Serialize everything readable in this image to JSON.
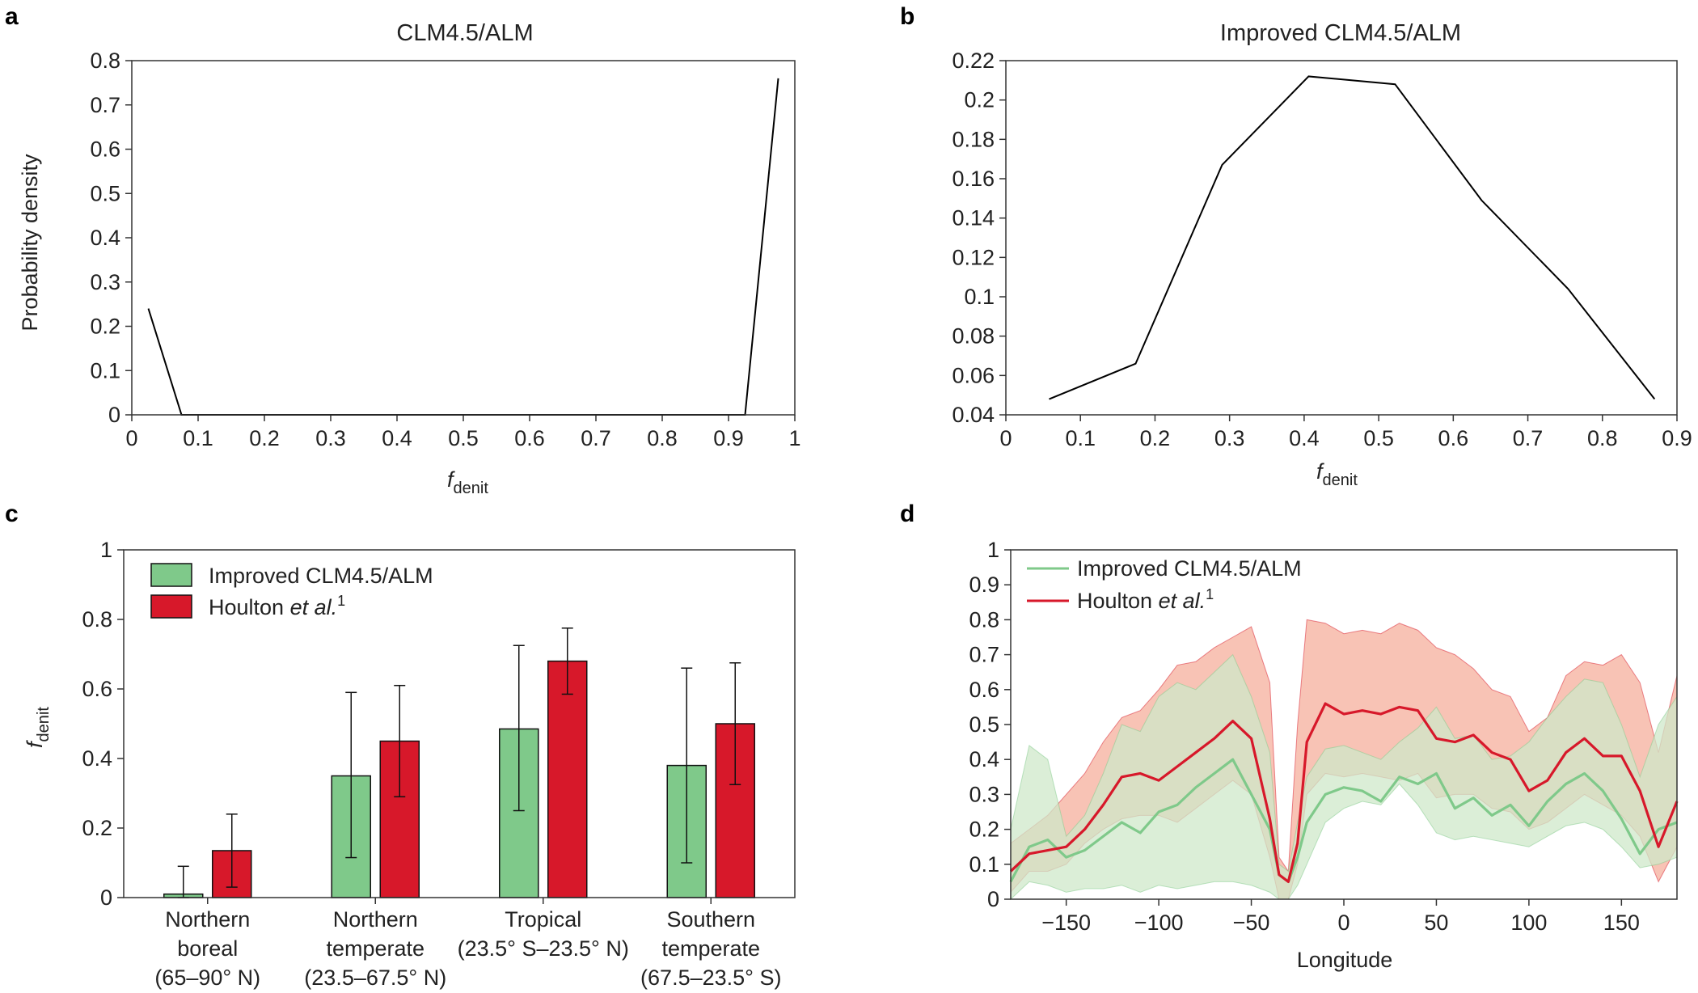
{
  "figure": {
    "panel_labels": [
      "a",
      "b",
      "c",
      "d"
    ]
  },
  "colors": {
    "green": "#7fc98a",
    "red": "#d7182a",
    "green_band": "#cfe8c9",
    "red_band": "#f7b9a8",
    "axis": "#333333"
  },
  "chart_data": [
    {
      "panel": "a",
      "type": "line",
      "title": "CLM4.5/ALM",
      "xlabel_main": "f",
      "xlabel_sub": "denit",
      "ylabel": "Probability density",
      "xlim": [
        0,
        1
      ],
      "ylim": [
        0,
        0.8
      ],
      "xticks": [
        0,
        0.1,
        0.2,
        0.3,
        0.4,
        0.5,
        0.6,
        0.7,
        0.8,
        0.9,
        1
      ],
      "xtick_labels": [
        "0",
        "0.1",
        "0.2",
        "0.3",
        "0.4",
        "0.5",
        "0.6",
        "0.7",
        "0.8",
        "0.9",
        "1"
      ],
      "yticks": [
        0,
        0.1,
        0.2,
        0.3,
        0.4,
        0.5,
        0.6,
        0.7,
        0.8
      ],
      "ytick_labels": [
        "0",
        "0.1",
        "0.2",
        "0.3",
        "0.4",
        "0.5",
        "0.6",
        "0.7",
        "0.8"
      ],
      "x": [
        0.025,
        0.075,
        0.925,
        0.975
      ],
      "y": [
        0.24,
        0,
        0,
        0.76
      ]
    },
    {
      "panel": "b",
      "type": "line",
      "title": "Improved CLM4.5/ALM",
      "xlabel_main": "f",
      "xlabel_sub": "denit",
      "ylabel": "",
      "xlim": [
        0,
        0.9
      ],
      "ylim": [
        0.04,
        0.22
      ],
      "xticks": [
        0,
        0.1,
        0.2,
        0.3,
        0.4,
        0.5,
        0.6,
        0.7,
        0.8,
        0.9
      ],
      "xtick_labels": [
        "0",
        "0.1",
        "0.2",
        "0.3",
        "0.4",
        "0.5",
        "0.6",
        "0.7",
        "0.8",
        "0.9"
      ],
      "yticks": [
        0.04,
        0.06,
        0.08,
        0.1,
        0.12,
        0.14,
        0.16,
        0.18,
        0.2,
        0.22
      ],
      "ytick_labels": [
        "0.04",
        "0.06",
        "0.08",
        "0.1",
        "0.12",
        "0.14",
        "0.16",
        "0.18",
        "0.2",
        "0.22"
      ],
      "x": [
        0.058,
        0.174,
        0.29,
        0.406,
        0.522,
        0.638,
        0.754,
        0.87
      ],
      "y": [
        0.048,
        0.066,
        0.167,
        0.212,
        0.208,
        0.149,
        0.104,
        0.048
      ]
    },
    {
      "panel": "c",
      "type": "bar",
      "title": "",
      "ylabel_main": "f",
      "ylabel_sub": "denit",
      "ylim": [
        0,
        1
      ],
      "yticks": [
        0,
        0.2,
        0.4,
        0.6,
        0.8,
        1
      ],
      "ytick_labels": [
        "0",
        "0.2",
        "0.4",
        "0.6",
        "0.8",
        "1"
      ],
      "categories": [
        [
          "Northern",
          "boreal",
          "(65–90° N)"
        ],
        [
          "Northern",
          "temperate",
          "(23.5–67.5° N)"
        ],
        [
          "Tropical",
          "(23.5° S–23.5° N)"
        ],
        [
          "Southern",
          "temperate",
          "(67.5–23.5° S)"
        ]
      ],
      "series": [
        {
          "name": "Improved CLM4.5/ALM",
          "values": [
            0.01,
            0.35,
            0.485,
            0.38
          ],
          "err_low": [
            0,
            0.115,
            0.25,
            0.1
          ],
          "err_high": [
            0.09,
            0.59,
            0.725,
            0.66
          ]
        },
        {
          "name": "Houlton et al.",
          "values": [
            0.135,
            0.45,
            0.68,
            0.5
          ],
          "err_low": [
            0.03,
            0.29,
            0.585,
            0.325
          ],
          "err_high": [
            0.24,
            0.61,
            0.775,
            0.675
          ]
        }
      ],
      "legend": [
        {
          "label": "Improved CLM4.5/ALM",
          "italic": "",
          "sup": ""
        },
        {
          "label": "Houlton ",
          "italic": "et al.",
          "sup": "1"
        }
      ]
    },
    {
      "panel": "d",
      "type": "line",
      "title": "",
      "xlabel": "Longitude",
      "xlim": [
        -180,
        180
      ],
      "ylim": [
        0,
        1
      ],
      "xticks": [
        -150,
        -100,
        -50,
        0,
        50,
        100,
        150
      ],
      "xtick_labels": [
        "−150",
        "−100",
        "−50",
        "0",
        "50",
        "100",
        "150"
      ],
      "yticks": [
        0,
        0.1,
        0.2,
        0.3,
        0.4,
        0.5,
        0.6,
        0.7,
        0.8,
        0.9,
        1
      ],
      "ytick_labels": [
        "0",
        "0.1",
        "0.2",
        "0.3",
        "0.4",
        "0.5",
        "0.6",
        "0.7",
        "0.8",
        "0.9",
        "1"
      ],
      "legend": [
        {
          "label": "Improved CLM4.5/ALM",
          "italic": "",
          "sup": ""
        },
        {
          "label": "Houlton ",
          "italic": "et al.",
          "sup": "1"
        }
      ],
      "series": [
        {
          "name": "Improved CLM4.5/ALM",
          "x": [
            -180,
            -170,
            -160,
            -150,
            -140,
            -130,
            -120,
            -110,
            -100,
            -90,
            -80,
            -70,
            -60,
            -50,
            -40,
            -35,
            -30,
            -25,
            -20,
            -10,
            0,
            10,
            20,
            30,
            40,
            50,
            60,
            70,
            80,
            90,
            100,
            110,
            120,
            130,
            140,
            150,
            160,
            170,
            180
          ],
          "y": [
            0.05,
            0.15,
            0.17,
            0.12,
            0.14,
            0.18,
            0.22,
            0.19,
            0.25,
            0.27,
            0.32,
            0.36,
            0.4,
            0.3,
            0.2,
            0.07,
            0.05,
            0.12,
            0.22,
            0.3,
            0.32,
            0.31,
            0.28,
            0.35,
            0.33,
            0.36,
            0.26,
            0.29,
            0.24,
            0.27,
            0.21,
            0.28,
            0.33,
            0.36,
            0.31,
            0.23,
            0.13,
            0.2,
            0.22
          ],
          "band_low": [
            0.0,
            0.05,
            0.04,
            0.02,
            0.03,
            0.03,
            0.04,
            0.02,
            0.04,
            0.03,
            0.04,
            0.05,
            0.05,
            0.04,
            0.02,
            0.0,
            0.0,
            0.04,
            0.1,
            0.22,
            0.26,
            0.28,
            0.27,
            0.33,
            0.27,
            0.19,
            0.17,
            0.18,
            0.17,
            0.16,
            0.15,
            0.18,
            0.21,
            0.22,
            0.2,
            0.15,
            0.09,
            0.1,
            0.12
          ],
          "band_high": [
            0.2,
            0.44,
            0.4,
            0.18,
            0.24,
            0.36,
            0.5,
            0.48,
            0.58,
            0.62,
            0.6,
            0.65,
            0.7,
            0.58,
            0.42,
            0.1,
            0.08,
            0.22,
            0.35,
            0.43,
            0.44,
            0.42,
            0.4,
            0.45,
            0.49,
            0.55,
            0.46,
            0.47,
            0.4,
            0.41,
            0.45,
            0.52,
            0.58,
            0.63,
            0.62,
            0.5,
            0.35,
            0.5,
            0.58
          ]
        },
        {
          "name": "Houlton et al.",
          "x": [
            -180,
            -170,
            -160,
            -150,
            -140,
            -130,
            -120,
            -110,
            -100,
            -90,
            -80,
            -70,
            -60,
            -50,
            -40,
            -35,
            -30,
            -25,
            -20,
            -10,
            0,
            10,
            20,
            30,
            40,
            50,
            60,
            70,
            80,
            90,
            100,
            110,
            120,
            130,
            140,
            150,
            160,
            170,
            180
          ],
          "y": [
            0.08,
            0.13,
            0.14,
            0.15,
            0.2,
            0.27,
            0.35,
            0.36,
            0.34,
            0.38,
            0.42,
            0.46,
            0.51,
            0.46,
            0.23,
            0.07,
            0.05,
            0.16,
            0.45,
            0.56,
            0.53,
            0.54,
            0.53,
            0.55,
            0.54,
            0.46,
            0.45,
            0.47,
            0.42,
            0.4,
            0.31,
            0.34,
            0.42,
            0.46,
            0.41,
            0.41,
            0.31,
            0.15,
            0.28
          ],
          "band_low": [
            0.02,
            0.08,
            0.08,
            0.1,
            0.16,
            0.2,
            0.23,
            0.24,
            0.24,
            0.22,
            0.26,
            0.3,
            0.34,
            0.3,
            0.12,
            0.0,
            0.0,
            0.1,
            0.3,
            0.36,
            0.35,
            0.36,
            0.35,
            0.34,
            0.36,
            0.29,
            0.3,
            0.3,
            0.26,
            0.25,
            0.2,
            0.22,
            0.26,
            0.3,
            0.27,
            0.24,
            0.18,
            0.05,
            0.15
          ],
          "band_high": [
            0.16,
            0.2,
            0.24,
            0.3,
            0.36,
            0.45,
            0.52,
            0.54,
            0.6,
            0.67,
            0.68,
            0.72,
            0.75,
            0.78,
            0.62,
            0.12,
            0.08,
            0.5,
            0.8,
            0.79,
            0.76,
            0.77,
            0.76,
            0.79,
            0.77,
            0.72,
            0.7,
            0.66,
            0.6,
            0.58,
            0.48,
            0.52,
            0.64,
            0.68,
            0.67,
            0.7,
            0.62,
            0.42,
            0.64
          ]
        }
      ]
    }
  ]
}
